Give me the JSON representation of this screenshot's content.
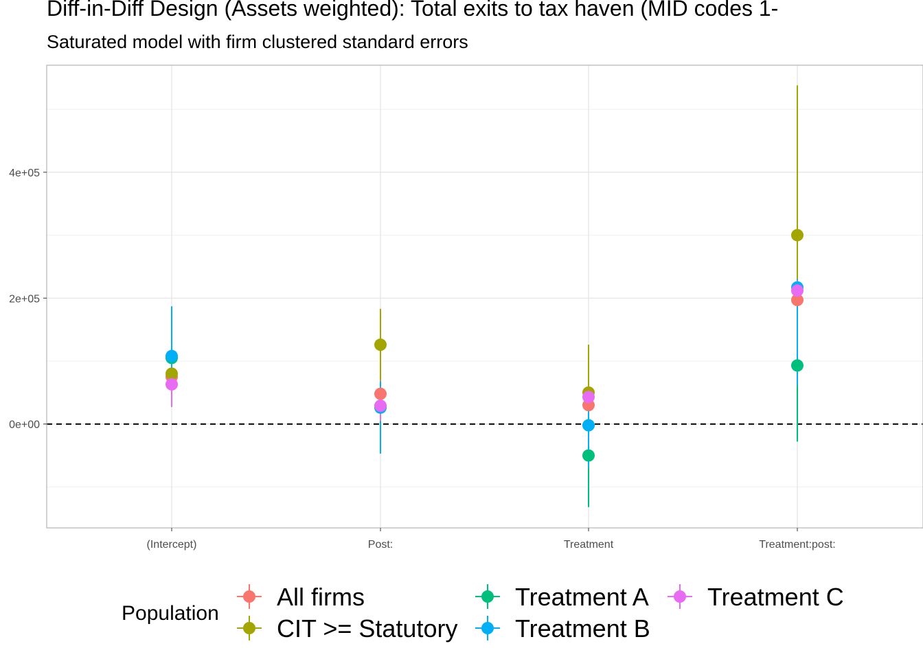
{
  "chart_data": {
    "type": "scatter",
    "title": "Diff-in-Diff Design (Assets weighted): Total exits to tax haven (MID codes 1-",
    "subtitle": "Saturated model with firm clustered standard errors",
    "categories": [
      "(Intercept)",
      "Post:",
      "Treatment",
      "Treatment:post:"
    ],
    "ylim": [
      -165000,
      570000
    ],
    "y_ticks": [
      0,
      200000,
      400000
    ],
    "y_tick_labels": [
      "0e+00",
      "2e+05",
      "4e+05"
    ],
    "y_minor_ticks": [
      -100000,
      100000,
      300000,
      500000
    ],
    "reference_line": 0,
    "grid": true,
    "legend": {
      "title": "Population",
      "position": "bottom"
    },
    "series": [
      {
        "name": "All firms",
        "color": "#F8766D",
        "values": [
          75000,
          48000,
          30000,
          197000
        ],
        "lower": [
          60000,
          10000,
          5000,
          120000
        ],
        "upper": [
          90000,
          70000,
          55000,
          270000
        ]
      },
      {
        "name": "CIT >= Statutory",
        "color": "#A3A500",
        "values": [
          80000,
          126000,
          50000,
          300000
        ],
        "lower": [
          70000,
          70000,
          -25000,
          60000
        ],
        "upper": [
          95000,
          183000,
          126000,
          538000
        ]
      },
      {
        "name": "Treatment A",
        "color": "#00BF7D",
        "values": [
          105000,
          27000,
          -50000,
          93000
        ],
        "lower": [
          30000,
          -40000,
          -132000,
          -28000
        ],
        "upper": [
          180000,
          60000,
          30000,
          200000
        ]
      },
      {
        "name": "Treatment B",
        "color": "#00B0F6",
        "values": [
          108000,
          26000,
          -2000,
          217000
        ],
        "lower": [
          30000,
          -47000,
          -70000,
          60000
        ],
        "upper": [
          187000,
          68000,
          40000,
          230000
        ]
      },
      {
        "name": "Treatment C",
        "color": "#E76BF3",
        "values": [
          63000,
          29000,
          43000,
          212000
        ],
        "lower": [
          27000,
          5000,
          25000,
          195000
        ],
        "upper": [
          85000,
          55000,
          60000,
          228000
        ]
      }
    ]
  }
}
